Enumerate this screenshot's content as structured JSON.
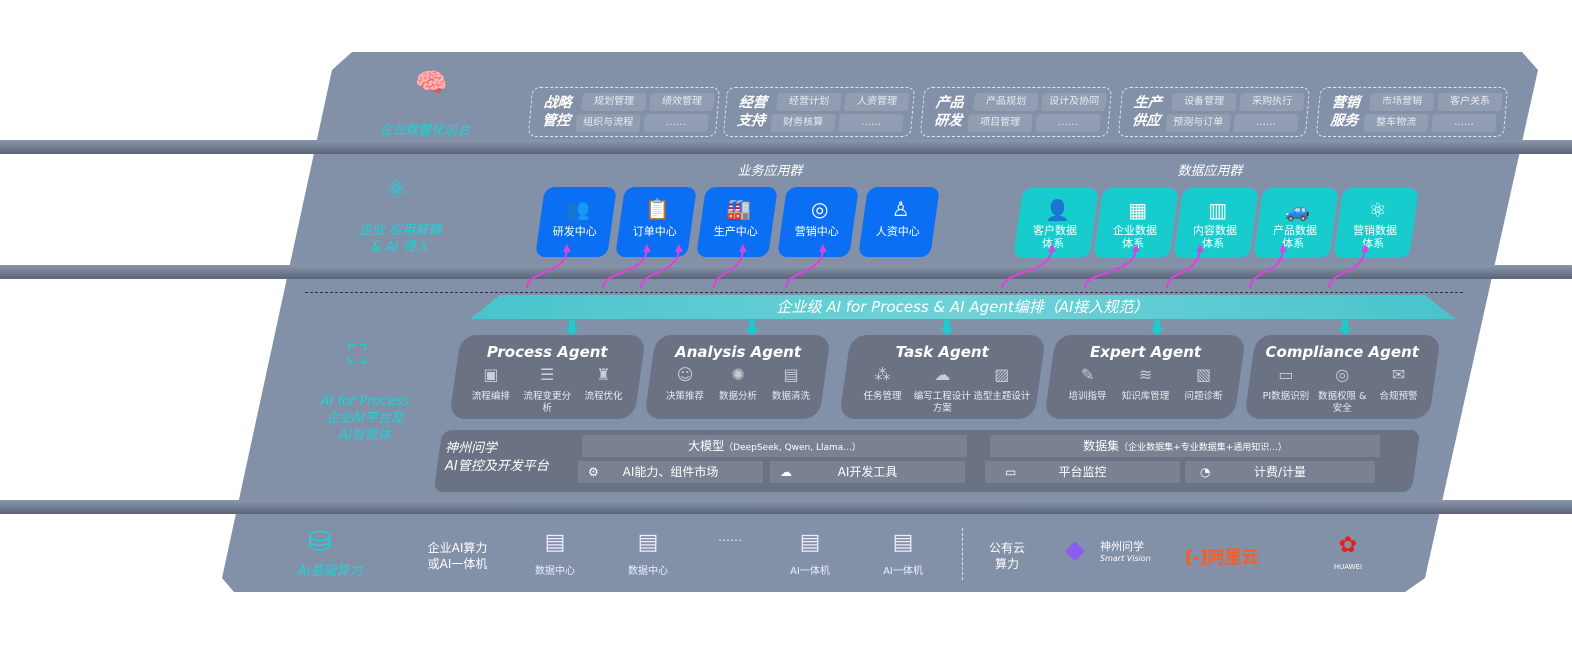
{
  "layer1": {
    "label": "企业数智化前台",
    "groups": [
      {
        "title": "战略管控",
        "items": [
          "规划管理",
          "绩效管理",
          "组织与流程",
          "……"
        ]
      },
      {
        "title": "经营支持",
        "items": [
          "经营计划",
          "人资管理",
          "财务核算",
          "……"
        ]
      },
      {
        "title": "产品研发",
        "items": [
          "产品规划",
          "设计及协同",
          "项目管理",
          "……"
        ]
      },
      {
        "title": "生产供应",
        "items": [
          "设备管理",
          "采购执行",
          "预测与订单",
          "……"
        ]
      },
      {
        "title": "营销服务",
        "items": [
          "市场营销",
          "客户关系",
          "整车物流",
          "……"
        ]
      }
    ]
  },
  "layer2": {
    "label_line1": "企业 应用解耦",
    "label_line2": "& AI 侵入",
    "business_title": "业务应用群",
    "business": [
      "研发中心",
      "订单中心",
      "生产中心",
      "营销中心",
      "人资中心"
    ],
    "data_title": "数据应用群",
    "data": [
      [
        "客户数据",
        "体系"
      ],
      [
        "企业数据",
        "体系"
      ],
      [
        "内容数据",
        "体系"
      ],
      [
        "产品数据",
        "体系"
      ],
      [
        "营销数据",
        "体系"
      ]
    ]
  },
  "banner": "企业级 AI for Process & AI Agent编排（AI接入规范）",
  "layer3": {
    "label_en": "AI for Process",
    "label_l2": "企业AI平台及",
    "label_l3": "AI智能体",
    "agents": [
      {
        "name": "Process Agent",
        "items": [
          "流程编排",
          "流程变更分析",
          "流程优化"
        ]
      },
      {
        "name": "Analysis Agent",
        "items": [
          "决策推荐",
          "数据分析",
          "数据清洗"
        ]
      },
      {
        "name": "Task Agent",
        "items": [
          "任务管理",
          "编写工程设计方案",
          "造型主题设计"
        ]
      },
      {
        "name": "Expert Agent",
        "items": [
          "培训指导",
          "知识库管理",
          "问题诊断"
        ]
      },
      {
        "name": "Compliance Agent",
        "items": [
          "PI数据识别",
          "数据权限 & 安全",
          "合规预警"
        ]
      }
    ],
    "platform": {
      "name_l1": "神州问学",
      "name_l2": "AI管控及开发平台",
      "model": "大模型",
      "model_note": "（DeepSeek, Qwen, Llama...）",
      "dataset": "数据集",
      "dataset_note": "（企业数据集+专业数据集+通用知识...）",
      "tools": [
        "AI能力、组件市场",
        "AI开发工具",
        "平台监控",
        "计费/计量"
      ]
    }
  },
  "layer4": {
    "label": "AI基础算力",
    "onprem_l1": "企业AI算力",
    "onprem_l2": "或AI一体机",
    "nodes": [
      "数据中心",
      "数据中心",
      "……",
      "AI一体机",
      "AI一体机"
    ],
    "cloud_l1": "公有云",
    "cloud_l2": "算力",
    "vendors": {
      "smartvision_cn": "神州问学",
      "smartvision_en": "Smart Vision",
      "aliyun": "阿里云",
      "huawei": "HUAWEI"
    }
  },
  "colors": {
    "panel": "#8290a8",
    "blue": "#0a6ff2",
    "teal": "#17cccc",
    "cyan_text": "#19d6d6",
    "arrow": "#e040e0",
    "agent": "#6b7284"
  }
}
